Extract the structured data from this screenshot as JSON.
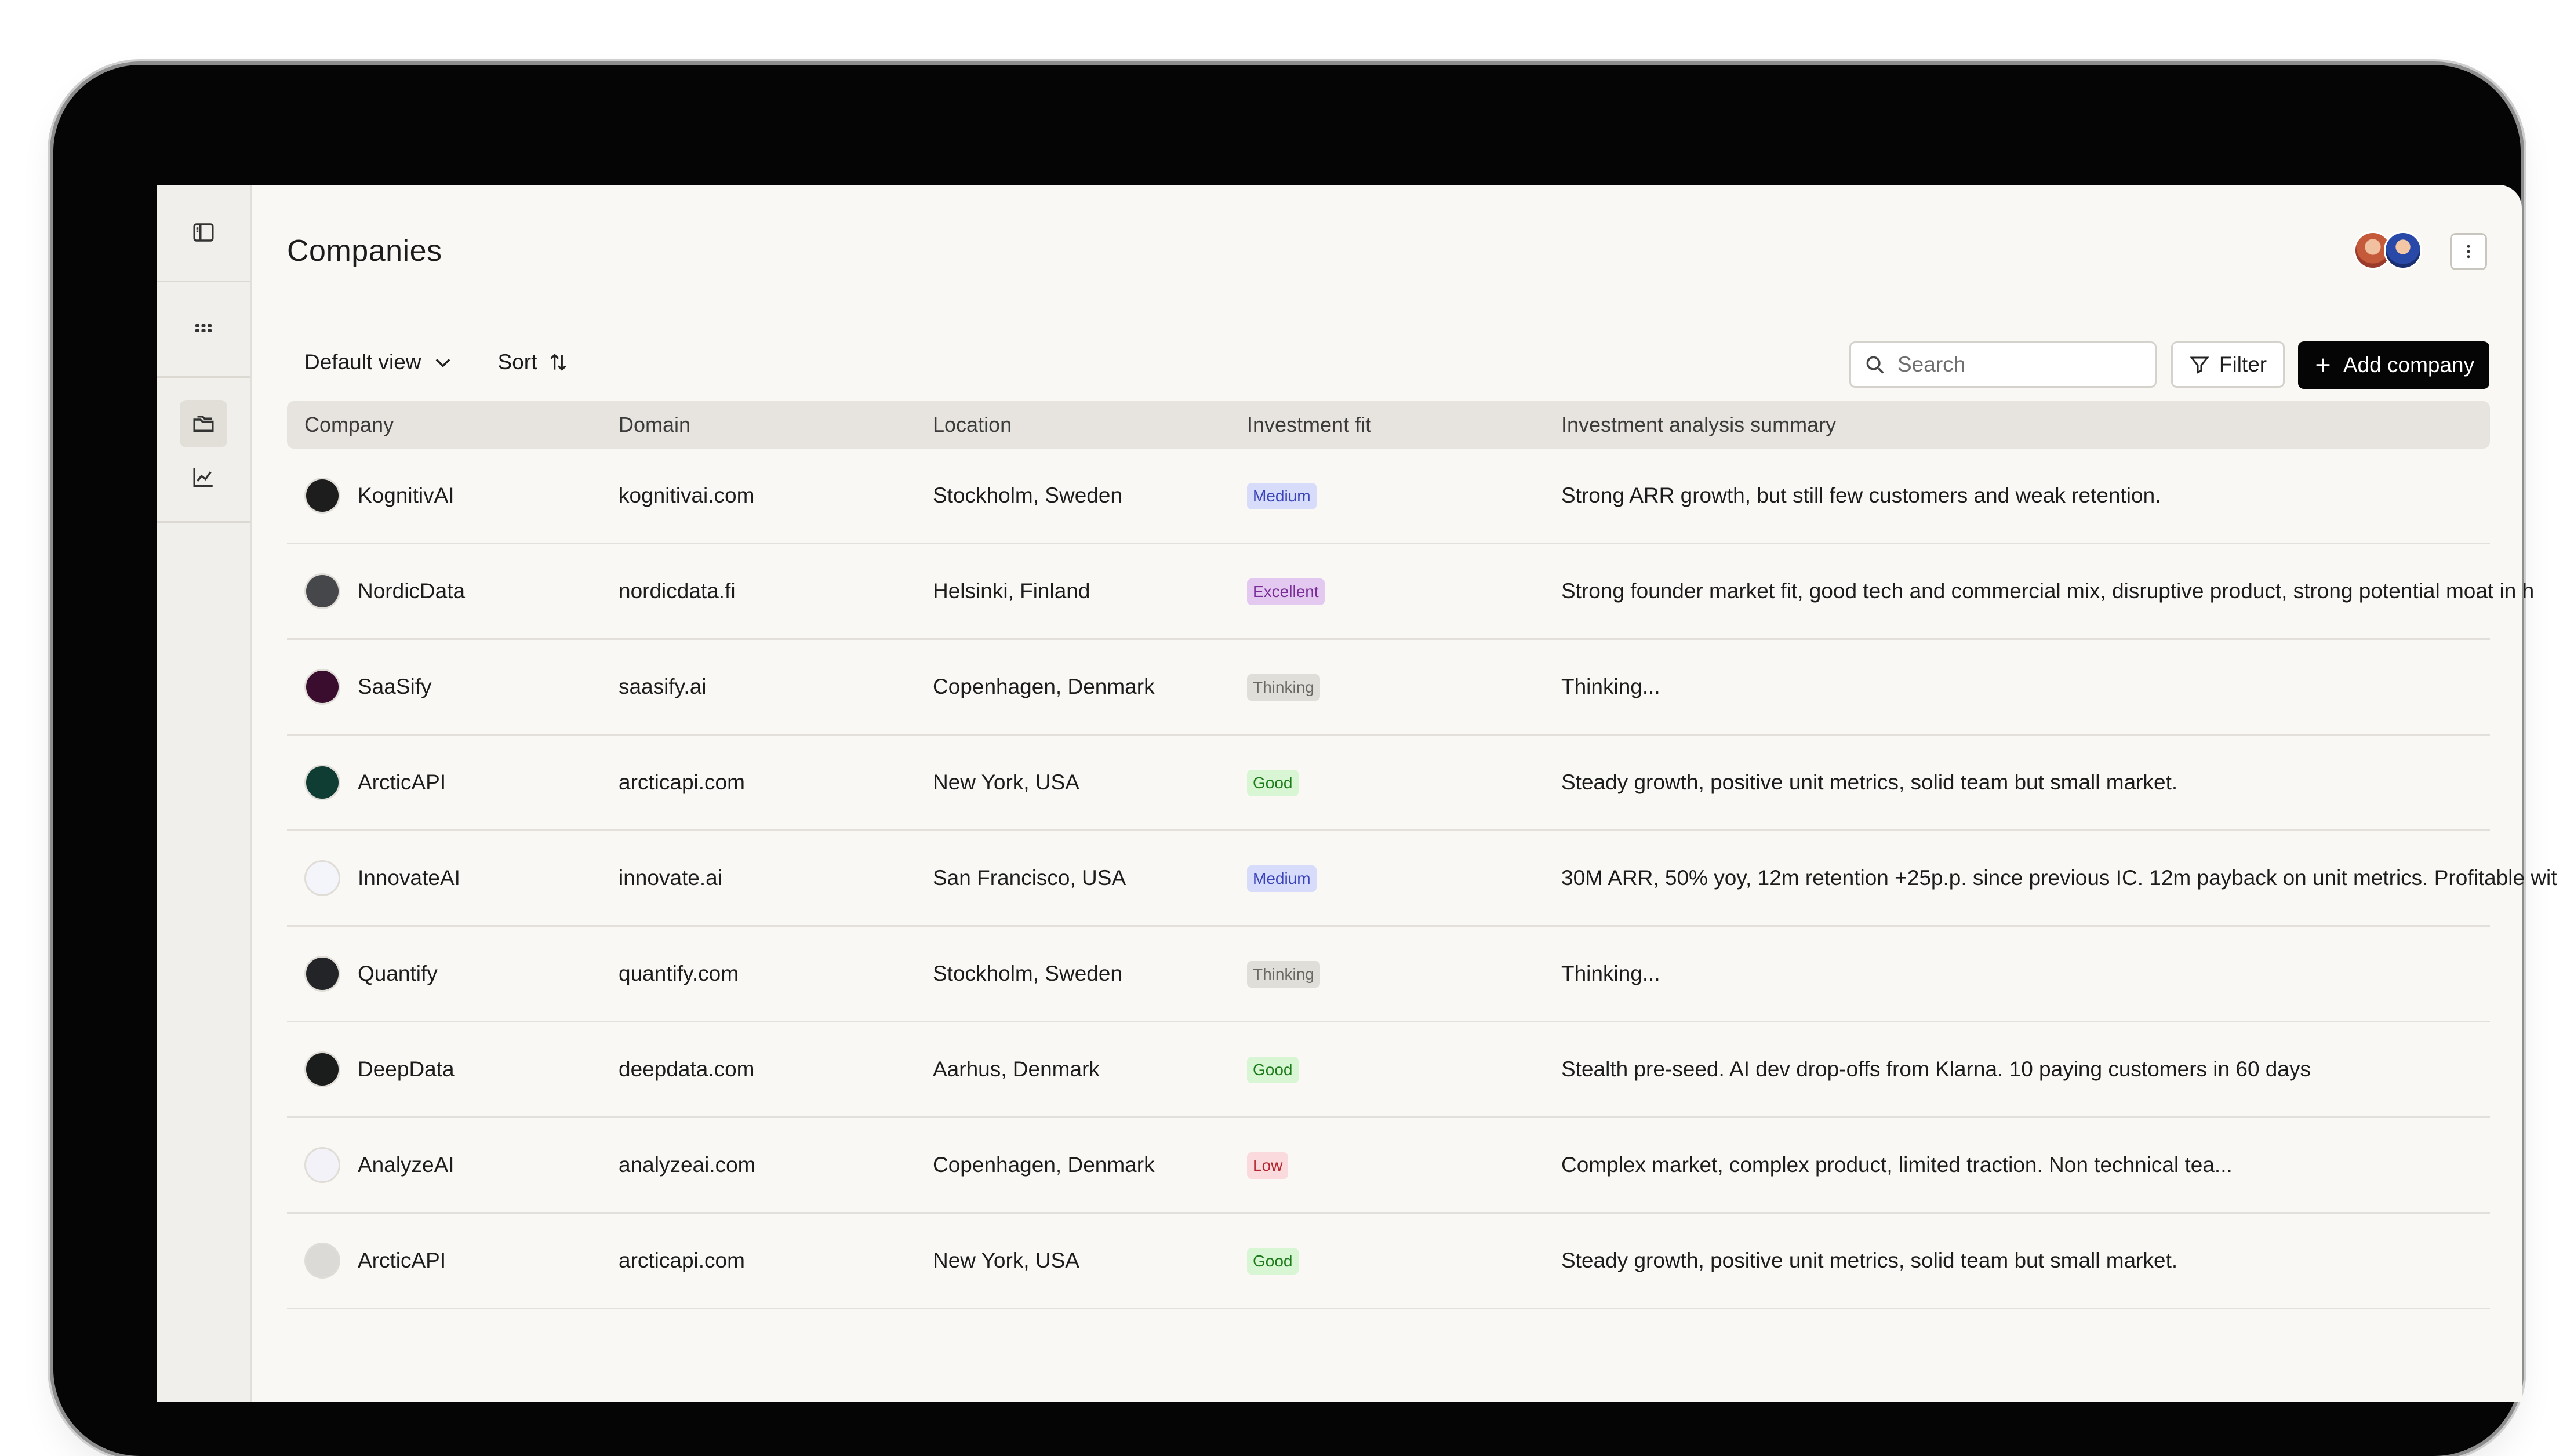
{
  "app": {
    "page_title": "Companies"
  },
  "header": {
    "avatars": [
      "user-avatar-1",
      "user-avatar-2"
    ],
    "more_icon": "vertical-dots-icon"
  },
  "sidebar": {
    "items": [
      {
        "icon": "sidebar-toggle-icon"
      },
      {
        "icon": "apps-grid-icon"
      },
      {
        "icon": "folders-icon",
        "active": true
      },
      {
        "icon": "chart-line-icon"
      }
    ]
  },
  "toolbar": {
    "view_label": "Default view",
    "sort_label": "Sort",
    "search_placeholder": "Search",
    "filter_label": "Filter",
    "add_label": "Add company"
  },
  "table": {
    "columns": [
      "Company",
      "Domain",
      "Location",
      "Investment fit",
      "Investment analysis summary"
    ],
    "rows": [
      {
        "company": "KognitivAI",
        "domain": "kognitivai.com",
        "location": "Stockholm, Sweden",
        "fit": "Medium",
        "fit_class": "b-medium",
        "summary": "Strong ARR growth, but still few customers and weak retention.",
        "logo_color": "#1d1d1d"
      },
      {
        "company": "NordicData",
        "domain": "nordicdata.fi",
        "location": "Helsinki, Finland",
        "fit": "Excellent",
        "fit_class": "b-excellent",
        "summary": "Strong founder market fit, good tech and commercial mix, disruptive product, strong potential moat in h",
        "logo_color": "#45474a"
      },
      {
        "company": "SaaSify",
        "domain": "saasify.ai",
        "location": "Copenhagen, Denmark",
        "fit": "Thinking",
        "fit_class": "b-thinking",
        "summary": "Thinking...",
        "logo_color": "#3a0d2e"
      },
      {
        "company": "ArcticAPI",
        "domain": "arcticapi.com",
        "location": "New York, USA",
        "fit": "Good",
        "fit_class": "b-good",
        "summary": "Steady growth, positive unit metrics, solid team but small market.",
        "logo_color": "#0f3d34"
      },
      {
        "company": "InnovateAI",
        "domain": "innovate.ai",
        "location": "San Francisco, USA",
        "fit": "Medium",
        "fit_class": "b-medium",
        "summary": "30M ARR, 50% yoy, 12m retention +25p.p. since previous IC. 12m payback on unit metrics. Profitable wit",
        "logo_color": "#f4f4fb"
      },
      {
        "company": "Quantify",
        "domain": "quantify.com",
        "location": "Stockholm, Sweden",
        "fit": "Thinking",
        "fit_class": "b-thinking",
        "summary": "Thinking...",
        "logo_color": "#222428"
      },
      {
        "company": "DeepData",
        "domain": "deepdata.com",
        "location": "Aarhus, Denmark",
        "fit": "Good",
        "fit_class": "b-good",
        "summary": "Stealth pre-seed. AI dev drop-offs from Klarna. 10 paying customers in 60 days",
        "logo_color": "#1b1d1c"
      },
      {
        "company": "AnalyzeAI",
        "domain": "analyzeai.com",
        "location": "Copenhagen, Denmark",
        "fit": "Low",
        "fit_class": "b-low",
        "summary": "Complex market, complex product, limited traction. Non technical tea...",
        "logo_color": "#f3f2f8"
      },
      {
        "company": "ArcticAPI",
        "domain": "arcticapi.com",
        "location": "New York, USA",
        "fit": "Good",
        "fit_class": "b-good",
        "summary": "Steady growth, positive unit metrics, solid team but small market.",
        "logo_color": "#dcdad6"
      }
    ]
  }
}
